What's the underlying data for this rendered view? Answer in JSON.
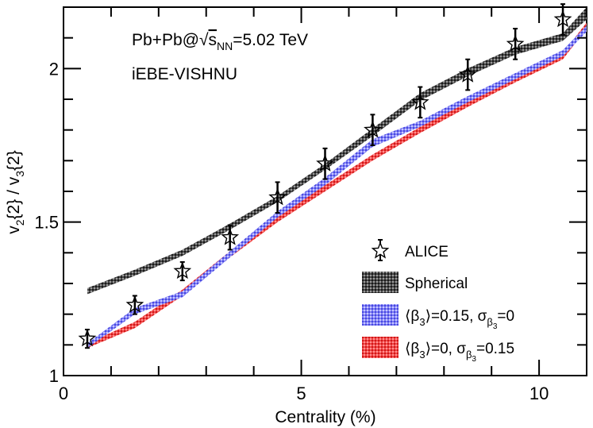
{
  "chart_data": {
    "type": "line",
    "annotations": {
      "system": "Pb+Pb@",
      "sqrt_symbol": "√",
      "s": "s",
      "s_sub": "NN",
      "energy": "=5.02 TeV",
      "model": "iEBE-VISHNU"
    },
    "xlabel": "Centrality (%)",
    "ylabel": {
      "v": "v",
      "sub2": "2",
      "brace2": "{2} / v",
      "sub3": "3",
      "brace3": "{2}"
    },
    "xlim": [
      0,
      11
    ],
    "ylim": [
      1,
      2.2
    ],
    "x_ticks": [
      0,
      5,
      10
    ],
    "y_ticks": [
      1,
      1.5,
      2
    ],
    "x_tick_labels": [
      "0",
      "5",
      "10"
    ],
    "y_tick_labels": [
      "1",
      "1.5",
      "2"
    ],
    "legend_position": "bottom-right",
    "legend": {
      "alice": "ALICE",
      "spherical": "Spherical",
      "beta015": {
        "open": "⟨β",
        "sub": "3",
        "mid": "⟩=0.15, σ",
        "sub2": "β",
        "sub3": "3",
        "end": "=0"
      },
      "sigma015": {
        "open": "⟨β",
        "sub": "3",
        "mid": "⟩=0, σ",
        "sub2": "β",
        "sub3": "3",
        "end": "=0.15"
      }
    },
    "series": [
      {
        "name": "ALICE",
        "kind": "points",
        "x": [
          0.5,
          1.5,
          2.5,
          3.5,
          4.5,
          5.5,
          6.5,
          7.5,
          8.5,
          9.5,
          10.5
        ],
        "y": [
          1.12,
          1.23,
          1.34,
          1.45,
          1.58,
          1.69,
          1.8,
          1.89,
          1.98,
          2.08,
          2.16
        ],
        "err": [
          0.03,
          0.03,
          0.03,
          0.04,
          0.05,
          0.05,
          0.05,
          0.05,
          0.05,
          0.05,
          0.05
        ]
      },
      {
        "name": "Spherical",
        "kind": "band",
        "color": "#555555",
        "x": [
          0.5,
          1.5,
          2.5,
          3.5,
          4.5,
          5.5,
          6.5,
          7.5,
          8.5,
          9.5,
          10.5,
          11
        ],
        "low": [
          1.265,
          1.325,
          1.39,
          1.475,
          1.565,
          1.67,
          1.78,
          1.895,
          1.975,
          2.045,
          2.09,
          2.16
        ],
        "high": [
          1.285,
          1.345,
          1.41,
          1.495,
          1.585,
          1.69,
          1.805,
          1.92,
          2.0,
          2.07,
          2.115,
          2.2
        ]
      },
      {
        "name": "⟨β3⟩=0.15, σβ3=0",
        "kind": "band",
        "color": "#6c6cf0",
        "x": [
          0.5,
          1.5,
          2.5,
          3.5,
          4.5,
          5.5,
          6.5,
          7.5,
          8.5,
          9.5,
          10.5,
          11
        ],
        "low": [
          1.09,
          1.2,
          1.255,
          1.385,
          1.515,
          1.62,
          1.745,
          1.81,
          1.89,
          1.965,
          2.04,
          2.12
        ],
        "high": [
          1.105,
          1.22,
          1.275,
          1.405,
          1.535,
          1.645,
          1.77,
          1.83,
          1.91,
          1.985,
          2.06,
          2.14
        ]
      },
      {
        "name": "⟨β3⟩=0, σβ3=0.15",
        "kind": "band",
        "color": "#e83030",
        "x": [
          0.5,
          1.5,
          2.5,
          3.5,
          4.5,
          5.5,
          6.5,
          7.5,
          8.5,
          9.5,
          10.5,
          11
        ],
        "low": [
          1.09,
          1.155,
          1.26,
          1.385,
          1.5,
          1.6,
          1.7,
          1.79,
          1.875,
          1.955,
          2.03,
          2.13
        ],
        "high": [
          1.105,
          1.175,
          1.28,
          1.405,
          1.52,
          1.62,
          1.72,
          1.81,
          1.895,
          1.975,
          2.05,
          2.15
        ]
      }
    ]
  }
}
